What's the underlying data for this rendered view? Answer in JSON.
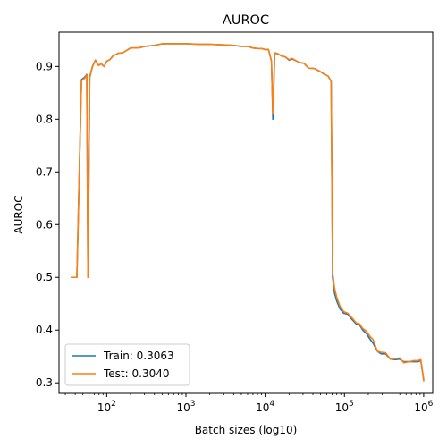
{
  "chart_data": {
    "type": "line",
    "title": "AUROC",
    "xlabel": "Batch sizes (log10)",
    "ylabel": "AUROC",
    "xscale": "log",
    "xlim": [
      25,
      1300000
    ],
    "ylim": [
      0.28,
      0.965
    ],
    "x_ticks": [
      100,
      1000,
      10000,
      100000,
      1000000
    ],
    "x_tick_labels": [
      {
        "base": "10",
        "exp": "2"
      },
      {
        "base": "10",
        "exp": "3"
      },
      {
        "base": "10",
        "exp": "4"
      },
      {
        "base": "10",
        "exp": "5"
      },
      {
        "base": "10",
        "exp": "6"
      }
    ],
    "y_ticks": [
      0.3,
      0.4,
      0.5,
      0.6,
      0.7,
      0.8,
      0.9
    ],
    "y_tick_labels": [
      "0.3",
      "0.4",
      "0.5",
      "0.6",
      "0.7",
      "0.8",
      "0.9"
    ],
    "grid": false,
    "legend_position": "lower-left",
    "series": [
      {
        "name": "Train: 0.3063",
        "color": "#1f77b4",
        "points": [
          [
            36,
            0.5
          ],
          [
            42,
            0.5
          ],
          [
            48,
            0.875
          ],
          [
            53,
            0.88
          ],
          [
            56,
            0.885
          ],
          [
            58,
            0.5
          ],
          [
            61,
            0.88
          ],
          [
            66,
            0.9
          ],
          [
            72,
            0.912
          ],
          [
            79,
            0.902
          ],
          [
            85,
            0.905
          ],
          [
            93,
            0.9
          ],
          [
            100,
            0.91
          ],
          [
            110,
            0.913
          ],
          [
            120,
            0.92
          ],
          [
            140,
            0.925
          ],
          [
            160,
            0.926
          ],
          [
            200,
            0.935
          ],
          [
            250,
            0.935
          ],
          [
            300,
            0.938
          ],
          [
            400,
            0.94
          ],
          [
            500,
            0.943
          ],
          [
            700,
            0.943
          ],
          [
            1000,
            0.943
          ],
          [
            1500,
            0.942
          ],
          [
            2000,
            0.942
          ],
          [
            3000,
            0.941
          ],
          [
            4000,
            0.94
          ],
          [
            5000,
            0.938
          ],
          [
            6000,
            0.938
          ],
          [
            7000,
            0.935
          ],
          [
            8000,
            0.934
          ],
          [
            9000,
            0.934
          ],
          [
            10000,
            0.932
          ],
          [
            11000,
            0.932
          ],
          [
            12000,
            0.91
          ],
          [
            12500,
            0.8
          ],
          [
            13200,
            0.925
          ],
          [
            14500,
            0.924
          ],
          [
            16000,
            0.92
          ],
          [
            18000,
            0.918
          ],
          [
            20000,
            0.912
          ],
          [
            22000,
            0.914
          ],
          [
            25000,
            0.91
          ],
          [
            28000,
            0.907
          ],
          [
            31000,
            0.906
          ],
          [
            35000,
            0.897
          ],
          [
            42000,
            0.896
          ],
          [
            50000,
            0.89
          ],
          [
            56000,
            0.885
          ],
          [
            62000,
            0.882
          ],
          [
            68000,
            0.872
          ],
          [
            71000,
            0.5
          ],
          [
            75000,
            0.47
          ],
          [
            80000,
            0.455
          ],
          [
            88000,
            0.44
          ],
          [
            98000,
            0.432
          ],
          [
            110000,
            0.43
          ],
          [
            125000,
            0.42
          ],
          [
            140000,
            0.412
          ],
          [
            155000,
            0.41
          ],
          [
            170000,
            0.4
          ],
          [
            190000,
            0.393
          ],
          [
            210000,
            0.383
          ],
          [
            230000,
            0.375
          ],
          [
            260000,
            0.36
          ],
          [
            290000,
            0.355
          ],
          [
            330000,
            0.355
          ],
          [
            380000,
            0.345
          ],
          [
            440000,
            0.344
          ],
          [
            500000,
            0.345
          ],
          [
            560000,
            0.34
          ],
          [
            650000,
            0.34
          ],
          [
            750000,
            0.34
          ],
          [
            850000,
            0.34
          ],
          [
            920000,
            0.342
          ],
          [
            1000000,
            0.306
          ]
        ]
      },
      {
        "name": "Test: 0.3040",
        "color": "#ff7f0e",
        "points": [
          [
            36,
            0.5
          ],
          [
            42,
            0.5
          ],
          [
            48,
            0.873
          ],
          [
            53,
            0.878
          ],
          [
            56,
            0.884
          ],
          [
            58,
            0.5
          ],
          [
            61,
            0.878
          ],
          [
            66,
            0.899
          ],
          [
            72,
            0.912
          ],
          [
            79,
            0.902
          ],
          [
            85,
            0.905
          ],
          [
            93,
            0.9
          ],
          [
            100,
            0.91
          ],
          [
            110,
            0.913
          ],
          [
            120,
            0.92
          ],
          [
            140,
            0.925
          ],
          [
            160,
            0.926
          ],
          [
            200,
            0.935
          ],
          [
            250,
            0.935
          ],
          [
            300,
            0.938
          ],
          [
            400,
            0.94
          ],
          [
            500,
            0.943
          ],
          [
            700,
            0.943
          ],
          [
            1000,
            0.943
          ],
          [
            1500,
            0.942
          ],
          [
            2000,
            0.942
          ],
          [
            3000,
            0.941
          ],
          [
            4000,
            0.94
          ],
          [
            5000,
            0.938
          ],
          [
            6000,
            0.938
          ],
          [
            7000,
            0.935
          ],
          [
            8000,
            0.934
          ],
          [
            9000,
            0.934
          ],
          [
            10000,
            0.932
          ],
          [
            11000,
            0.932
          ],
          [
            12000,
            0.91
          ],
          [
            12500,
            0.81
          ],
          [
            13200,
            0.926
          ],
          [
            14500,
            0.924
          ],
          [
            16000,
            0.92
          ],
          [
            18000,
            0.918
          ],
          [
            20000,
            0.913
          ],
          [
            22000,
            0.915
          ],
          [
            25000,
            0.91
          ],
          [
            28000,
            0.907
          ],
          [
            31000,
            0.906
          ],
          [
            35000,
            0.897
          ],
          [
            42000,
            0.896
          ],
          [
            50000,
            0.89
          ],
          [
            56000,
            0.885
          ],
          [
            62000,
            0.882
          ],
          [
            68000,
            0.872
          ],
          [
            71000,
            0.51
          ],
          [
            75000,
            0.48
          ],
          [
            80000,
            0.462
          ],
          [
            88000,
            0.445
          ],
          [
            98000,
            0.435
          ],
          [
            110000,
            0.432
          ],
          [
            125000,
            0.423
          ],
          [
            140000,
            0.414
          ],
          [
            155000,
            0.412
          ],
          [
            170000,
            0.403
          ],
          [
            190000,
            0.398
          ],
          [
            210000,
            0.388
          ],
          [
            230000,
            0.382
          ],
          [
            260000,
            0.36
          ],
          [
            290000,
            0.358
          ],
          [
            330000,
            0.357
          ],
          [
            380000,
            0.345
          ],
          [
            440000,
            0.346
          ],
          [
            500000,
            0.347
          ],
          [
            560000,
            0.338
          ],
          [
            650000,
            0.34
          ],
          [
            750000,
            0.342
          ],
          [
            850000,
            0.342
          ],
          [
            920000,
            0.344
          ],
          [
            1000000,
            0.304
          ]
        ]
      }
    ]
  }
}
